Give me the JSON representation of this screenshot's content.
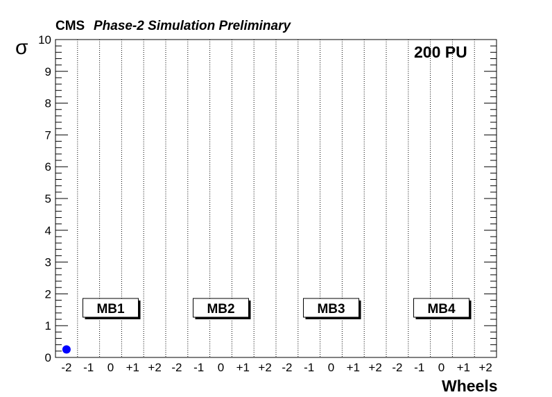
{
  "header": {
    "experiment": "CMS",
    "subtitle": "Phase-2 Simulation Preliminary",
    "pileup": "200 PU"
  },
  "chart_data": {
    "type": "scatter",
    "title": "",
    "xlabel": "Wheels",
    "ylabel": "σ",
    "ylim": [
      0,
      10
    ],
    "yticks": [
      "0",
      "1",
      "2",
      "3",
      "4",
      "5",
      "6",
      "7",
      "8",
      "9",
      "10"
    ],
    "xtick_labels": [
      "-2",
      "-1",
      "0",
      "+1",
      "+2",
      "-2",
      "-1",
      "0",
      "+1",
      "+2",
      "-2",
      "-1",
      "0",
      "+1",
      "+2",
      "-2",
      "-1",
      "0",
      "+1",
      "+2"
    ],
    "station_boxes": [
      "MB1",
      "MB2",
      "MB3",
      "MB4"
    ],
    "grid": "vertical dotted",
    "series": [
      {
        "color": "#0000ff",
        "points": [
          {
            "x": "-2",
            "station": "MB1",
            "y": 0.25
          }
        ]
      }
    ]
  }
}
